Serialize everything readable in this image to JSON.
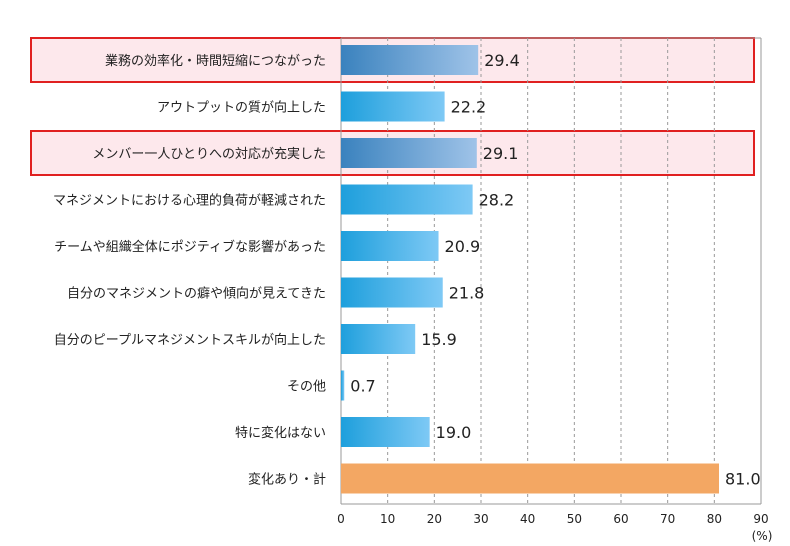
{
  "chart_data": {
    "type": "bar",
    "orientation": "horizontal",
    "categories": [
      "業務の効率化・時間短縮につながった",
      "アウトプットの質が向上した",
      "メンバー一人ひとりへの対応が充実した",
      "マネジメントにおける心理的負荷が軽減された",
      "チームや組織全体にポジティブな影響があった",
      "自分のマネジメントの癖や傾向が見えてきた",
      "自分のピープルマネジメントスキルが向上した",
      "その他",
      "特に変化はない",
      "変化あり・計"
    ],
    "values": [
      29.4,
      22.2,
      29.1,
      28.2,
      20.9,
      21.8,
      15.9,
      0.7,
      19.0,
      81.0
    ],
    "value_labels": [
      "29.4",
      "22.2",
      "29.1",
      "28.2",
      "20.9",
      "21.8",
      "15.9",
      "0.7",
      "19.0",
      "81.0"
    ],
    "highlighted": [
      true,
      false,
      true,
      false,
      false,
      false,
      false,
      false,
      false,
      false
    ],
    "bar_style": [
      "dark",
      "light",
      "dark",
      "light",
      "light",
      "light",
      "light",
      "light",
      "light",
      "total"
    ],
    "xlim": [
      0,
      90
    ],
    "xticks": [
      0,
      10,
      20,
      30,
      40,
      50,
      60,
      70,
      80,
      90
    ],
    "xtick_labels": [
      "0",
      "10",
      "20",
      "30",
      "40",
      "50",
      "60",
      "70",
      "80",
      "90"
    ],
    "unit_label": "(%)",
    "grid": true,
    "colors": {
      "light_start": "#1e9fdc",
      "light_end": "#7ec9f5",
      "dark_start": "#3a82be",
      "dark_end": "#9fc3e8",
      "total": "#f3a763",
      "highlight_fill": "#fde8ec",
      "highlight_stroke": "#e02020",
      "grid": "#9a9a9a",
      "text": "#222222"
    }
  }
}
